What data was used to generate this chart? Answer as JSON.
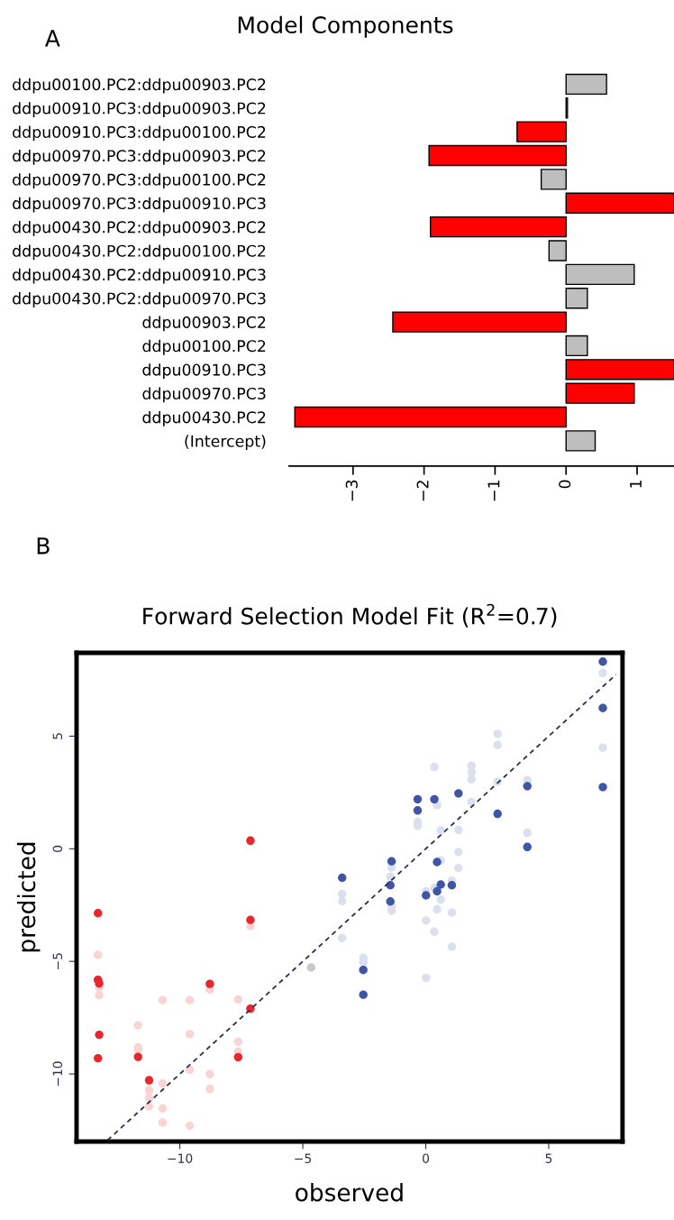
{
  "chart_data": [
    {
      "type": "bar",
      "orientation": "horizontal",
      "title": "Model Components",
      "annotations": [
        "A"
      ],
      "categories": [
        "ddpu00100.PC2:ddpu00903.PC2",
        "ddpu00910.PC3:ddpu00903.PC2",
        "ddpu00910.PC3:ddpu00100.PC2",
        "ddpu00970.PC3:ddpu00903.PC2",
        "ddpu00970.PC3:ddpu00100.PC2",
        "ddpu00970.PC3:ddpu00910.PC3",
        "ddpu00430.PC2:ddpu00903.PC2",
        "ddpu00430.PC2:ddpu00100.PC2",
        "ddpu00430.PC2:ddpu00910.PC3",
        "ddpu00430.PC2:ddpu00970.PC3",
        "ddpu00903.PC2",
        "ddpu00100.PC2",
        "ddpu00910.PC3",
        "ddpu00970.PC3",
        "ddpu00430.PC2",
        "(Intercept)"
      ],
      "values": [
        0.57,
        0.02,
        -0.69,
        -1.93,
        -0.35,
        1.52,
        -1.91,
        -0.24,
        0.96,
        0.3,
        -2.44,
        0.3,
        1.52,
        0.96,
        -3.82,
        0.41
      ],
      "colors": [
        "#bebebe",
        "#bebebe",
        "#ff0000",
        "#ff0000",
        "#bebebe",
        "#ff0000",
        "#ff0000",
        "#bebebe",
        "#bebebe",
        "#bebebe",
        "#ff0000",
        "#bebebe",
        "#ff0000",
        "#ff0000",
        "#ff0000",
        "#bebebe"
      ],
      "xlim": [
        -3.9,
        1.52
      ],
      "xticks": [
        {
          "value": -3,
          "label": "−3"
        },
        {
          "value": -2,
          "label": "−2"
        },
        {
          "value": -1,
          "label": "−1"
        },
        0,
        1
      ]
    },
    {
      "type": "scatter",
      "title": "Forward Selection Model Fit (R$^{2}$=0.7)",
      "xlabel": "observed",
      "ylabel": "predicted",
      "annotations": [
        "B"
      ],
      "marker": "circle",
      "xlim": [
        -14.2,
        8.0
      ],
      "ylim": [
        -13.0,
        8.7
      ],
      "xticks": [
        {
          "value": -10,
          "label": "−10"
        },
        {
          "value": -5,
          "label": "−5"
        },
        0,
        5
      ],
      "yticks": [
        {
          "value": -10,
          "label": "−10"
        },
        {
          "value": -5,
          "label": "−5"
        },
        0,
        5
      ],
      "series": [
        {
          "color": "#f9d4d4",
          "x": [
            -13.33,
            -13.28,
            -13.28,
            -11.7,
            -11.7,
            -11.7,
            -11.25,
            -11.25,
            -11.25,
            -10.7,
            -10.7,
            -10.7,
            -10.7,
            -9.6,
            -9.6,
            -9.6,
            -9.6,
            -8.78,
            -8.78,
            -8.78,
            -7.63,
            -7.63,
            -7.63,
            -7.13
          ],
          "values": [
            -4.71,
            -6.16,
            -6.5,
            -7.84,
            -8.82,
            -8.93,
            -10.72,
            -11.06,
            -11.44,
            -6.72,
            -10.42,
            -11.53,
            -12.16,
            -6.72,
            -8.23,
            -9.81,
            -12.3,
            -6.25,
            -10.01,
            -10.66,
            -6.69,
            -8.57,
            -9.0,
            -3.44
          ]
        },
        {
          "color": "#dcdfee",
          "x": [
            -3.4,
            -3.4,
            -3.4,
            -2.54,
            -2.54,
            -1.39,
            -1.44,
            -1.39,
            -1.39,
            -0.33,
            -0.33,
            0.35,
            0.46,
            0.61,
            0.61,
            0.61,
            0.01,
            0.01,
            0.01,
            0.35,
            0.35,
            0.46,
            1.06,
            1.06,
            1.06,
            1.33,
            1.33,
            1.33,
            1.86,
            1.86,
            1.86,
            1.86,
            2.92,
            2.92,
            2.92,
            4.13,
            4.13,
            7.2,
            7.2
          ],
          "values": [
            -2.01,
            -2.33,
            -3.96,
            -4.84,
            -5.05,
            -0.83,
            -1.24,
            -2.53,
            -2.75,
            1.2,
            1.02,
            3.63,
            1.94,
            0.82,
            -0.52,
            -2.26,
            -1.89,
            -3.19,
            -5.73,
            -1.74,
            -3.68,
            -2.69,
            -1.41,
            -2.84,
            -4.35,
            0.84,
            -0.15,
            -0.86,
            3.69,
            3.39,
            3.08,
            2.08,
            5.1,
            4.61,
            2.98,
            3.05,
            0.71,
            7.8,
            4.49
          ]
        },
        {
          "color": "#c8c8c8",
          "x": [
            -4.66
          ],
          "values": [
            -5.27
          ]
        },
        {
          "color": "#e8262b",
          "x": [
            -13.33,
            -13.33,
            -13.28,
            -13.28,
            -13.33,
            -11.7,
            -11.25,
            -8.78,
            -7.63,
            -7.13,
            -7.13,
            -7.13
          ],
          "values": [
            -2.86,
            -5.82,
            -5.98,
            -8.26,
            -9.3,
            -9.24,
            -10.28,
            -6.0,
            -9.25,
            0.36,
            -3.16,
            -7.1
          ]
        },
        {
          "color": "#3f56a6",
          "x": [
            -3.4,
            -2.54,
            -2.54,
            -1.39,
            -1.44,
            -1.44,
            -0.33,
            -0.33,
            0.35,
            1.33,
            0.46,
            0.61,
            0.46,
            0.01,
            1.06,
            2.92,
            4.13,
            4.13,
            7.2,
            7.2,
            7.2
          ],
          "values": [
            -1.29,
            -5.38,
            -6.48,
            -0.56,
            -1.62,
            -2.34,
            2.2,
            1.7,
            2.2,
            2.46,
            -0.59,
            -1.59,
            -1.89,
            -2.07,
            -1.62,
            1.55,
            2.78,
            0.08,
            8.31,
            6.25,
            2.74
          ]
        },
        {
          "type": "line",
          "line_style": "dashed",
          "marker": "none",
          "color": "#2b3050",
          "x": [
            -12.94,
            7.74
          ],
          "values": [
            -12.94,
            7.74
          ]
        }
      ]
    }
  ]
}
